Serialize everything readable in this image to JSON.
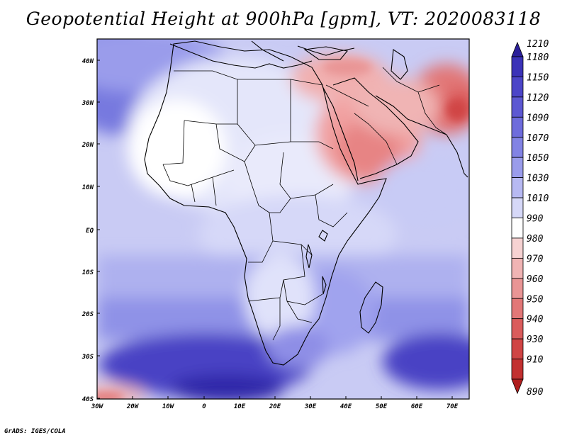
{
  "title": "Geopotential Height at 900hPa [gpm], VT: 2020083118",
  "credit": "GrADS: IGES/COLA",
  "map": {
    "lon_labels": [
      "30W",
      "20W",
      "10W",
      "0",
      "10E",
      "20E",
      "30E",
      "40E",
      "50E",
      "60E",
      "70E"
    ],
    "lat_labels": [
      "40N",
      "30N",
      "20N",
      "10N",
      "EQ",
      "10S",
      "20S",
      "30S",
      "40S"
    ]
  },
  "colorbar": {
    "labels": [
      "1210",
      "1180",
      "1150",
      "1120",
      "1090",
      "1070",
      "1050",
      "1030",
      "1010",
      "990",
      "980",
      "970",
      "960",
      "950",
      "940",
      "930",
      "910",
      "890"
    ],
    "colors": [
      "#2b1f9a",
      "#3b32b8",
      "#4c45c8",
      "#5d58d2",
      "#6e6cdc",
      "#8283e4",
      "#9a9ceb",
      "#b7b9f2",
      "#d6d8f8",
      "#ffffff",
      "#f6d2d2",
      "#f0b4b4",
      "#e99595",
      "#e27777",
      "#da5c5c",
      "#d04444",
      "#c23030",
      "#b01e1e"
    ]
  }
}
